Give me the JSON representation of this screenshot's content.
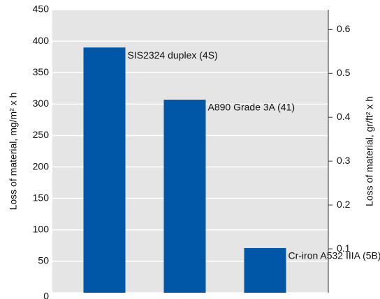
{
  "chart_data": {
    "type": "bar",
    "categories": [
      "SIS2324 duplex (4S)",
      "A890 Grade 3A (41)",
      "Cr-iron A532 IIIA (5B)"
    ],
    "values": [
      390,
      307,
      71
    ],
    "color": "#0057a8",
    "ylabel": "Loss of material, mg/m² x h",
    "y2label": "Loss of material, gr/ft² x h",
    "ylim": [
      0,
      450
    ],
    "yticks": [
      0,
      50,
      100,
      150,
      200,
      250,
      300,
      350,
      400,
      450
    ],
    "y2lim": [
      0,
      0.645
    ],
    "y2ticks": [
      0.1,
      0.2,
      0.3,
      0.4,
      0.5,
      0.6
    ],
    "grid": true
  }
}
